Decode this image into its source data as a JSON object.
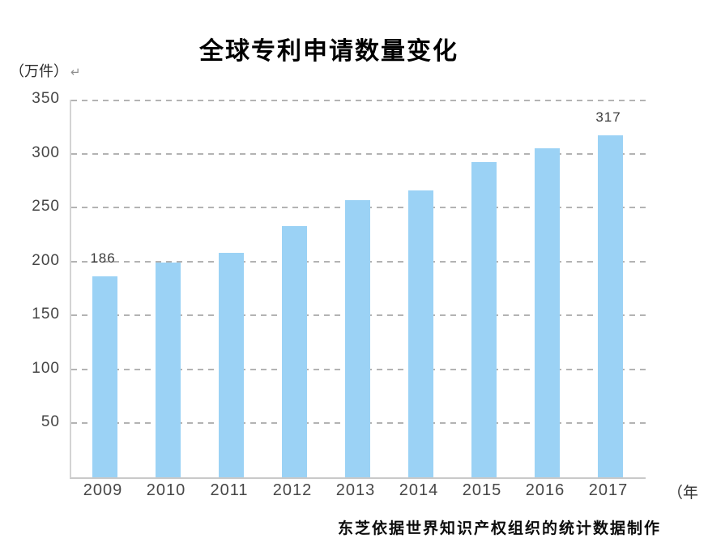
{
  "chart_data": {
    "type": "bar",
    "title": "全球专利申请数量变化",
    "unit_label": "（万件）",
    "return_mark": "↵",
    "x_axis_suffix": "（年",
    "categories": [
      "2009",
      "2010",
      "2011",
      "2012",
      "2013",
      "2014",
      "2015",
      "2016",
      "2017"
    ],
    "values": [
      186,
      199,
      208,
      233,
      257,
      266,
      292,
      305,
      317
    ],
    "point_labels": [
      "186",
      "",
      "",
      "",
      "",
      "",
      "",
      "",
      "317"
    ],
    "ylim": [
      0,
      350
    ],
    "yticks": [
      50,
      100,
      150,
      200,
      250,
      300,
      350
    ],
    "grid": "horizontal-dashed",
    "legend": "none",
    "bar_color": "#9BD2F5",
    "source_caption": "东芝依据世界知识产权组织的统计数据制作"
  }
}
